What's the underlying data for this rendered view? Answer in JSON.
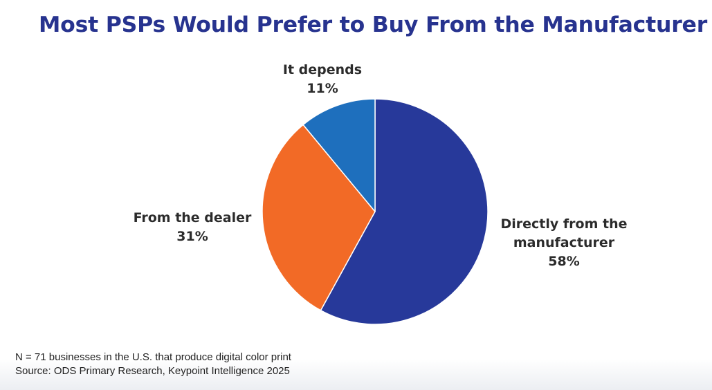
{
  "title": "Most PSPs Would Prefer to Buy From the Manufacturer",
  "chart_data": {
    "type": "pie",
    "title": "Most PSPs Would Prefer to Buy From the Manufacturer",
    "slices": [
      {
        "label_lines": [
          "Directly from the",
          "manufacturer"
        ],
        "value": 58,
        "value_label": "58%",
        "color": "#27399a"
      },
      {
        "label_lines": [
          "From the dealer"
        ],
        "value": 31,
        "value_label": "31%",
        "color": "#f26a26"
      },
      {
        "label_lines": [
          "It depends"
        ],
        "value": 11,
        "value_label": "11%",
        "color": "#1e6fbd"
      }
    ],
    "start": "12 o'clock",
    "direction": "clockwise",
    "legend": "none"
  },
  "footnote": {
    "line1": "N = 71 businesses in the U.S. that produce digital color print",
    "line2": "Source: ODS Primary Research, Keypoint Intelligence 2025"
  }
}
